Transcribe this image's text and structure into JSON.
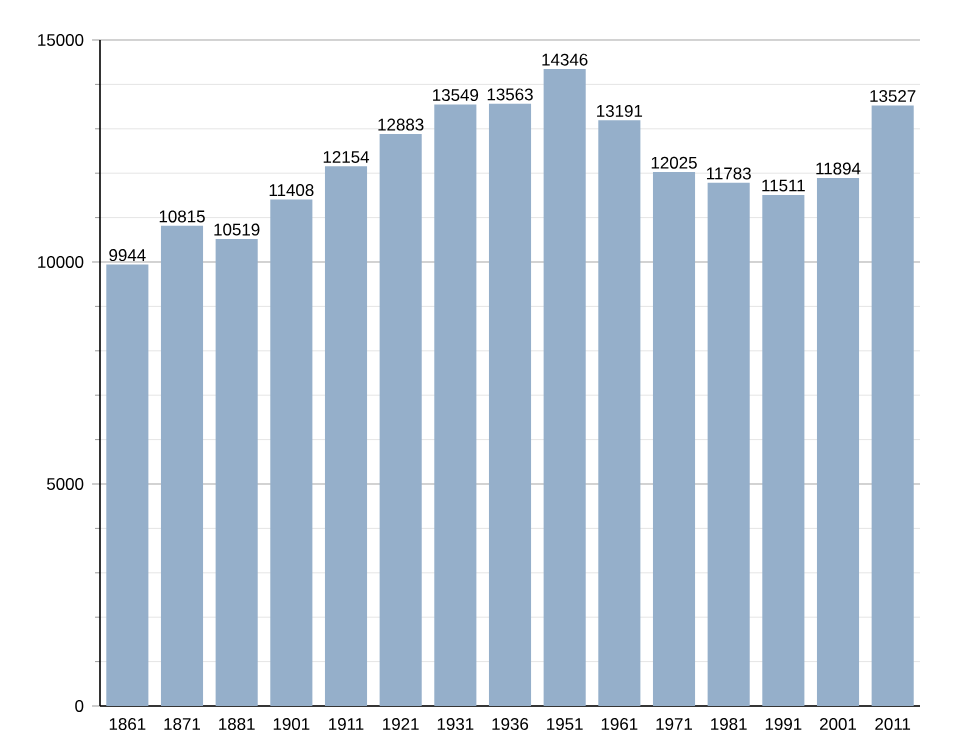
{
  "chart_data": {
    "type": "bar",
    "categories": [
      "1861",
      "1871",
      "1881",
      "1901",
      "1911",
      "1921",
      "1931",
      "1936",
      "1951",
      "1961",
      "1971",
      "1981",
      "1991",
      "2001",
      "2011"
    ],
    "values": [
      9944,
      10815,
      10519,
      11408,
      12154,
      12883,
      13549,
      13563,
      14346,
      13191,
      12025,
      11783,
      11511,
      11894,
      13527
    ],
    "color": "#95afca",
    "ylim": [
      0,
      15000
    ],
    "yticks": [
      0,
      5000,
      10000,
      15000
    ],
    "grid": "y",
    "data_labels": true
  }
}
